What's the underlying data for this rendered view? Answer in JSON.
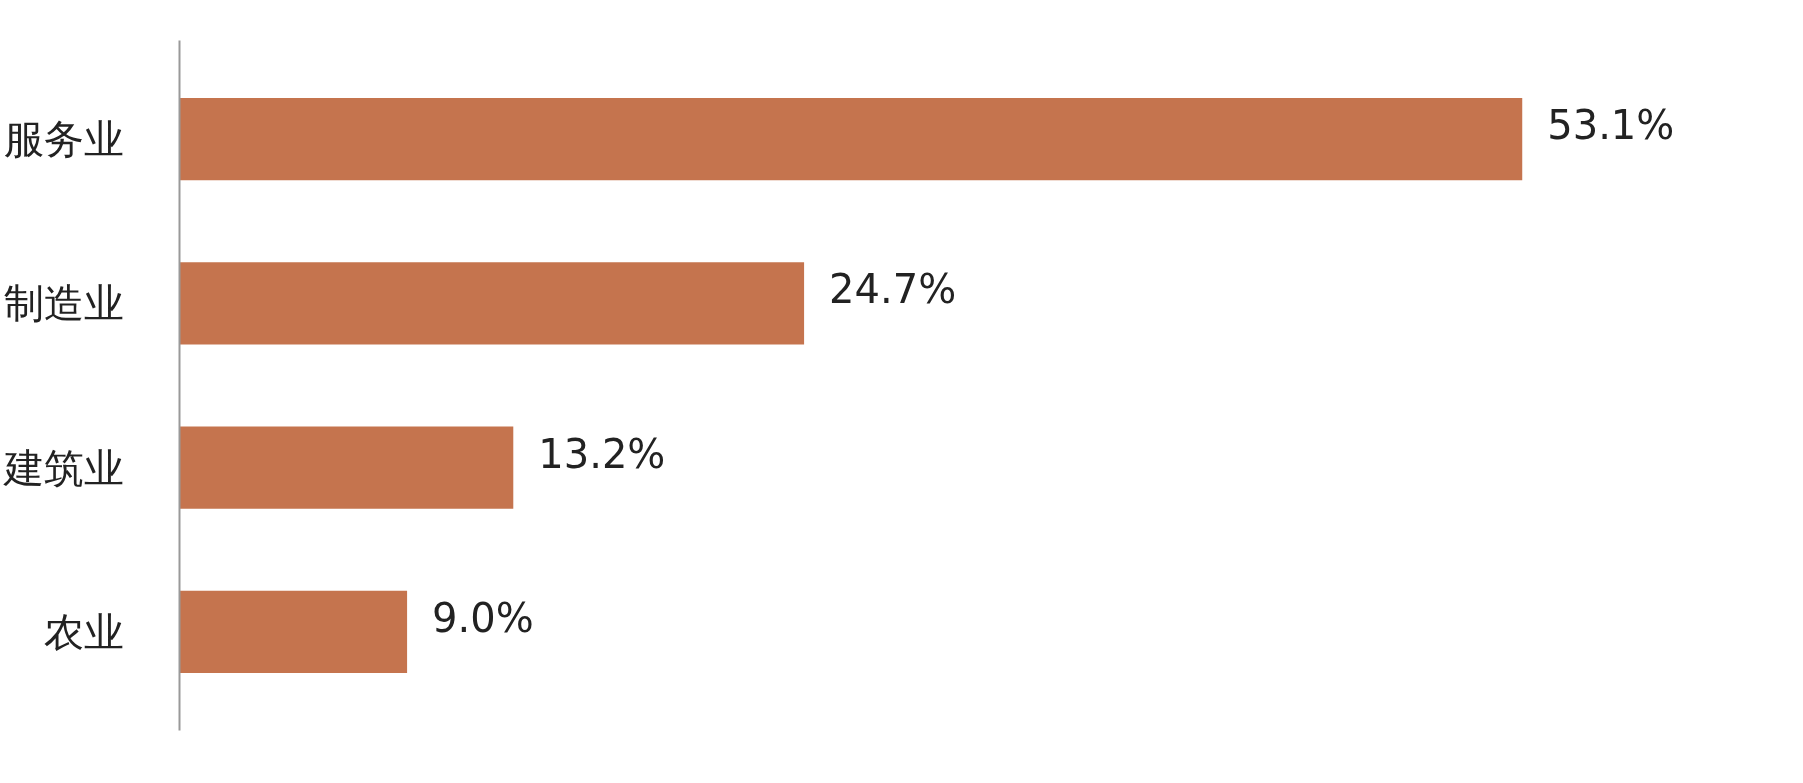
{
  "chart_data": {
    "type": "bar",
    "orientation": "horizontal",
    "categories": [
      "服务业",
      "制造业",
      "建筑业",
      "农业"
    ],
    "values": [
      53.1,
      24.7,
      13.2,
      9.0
    ],
    "value_labels": [
      "53.1%",
      "24.7%",
      "13.2%",
      "9.0%"
    ],
    "color": "#c5744e",
    "grid": false,
    "tick_labels": "y"
  }
}
